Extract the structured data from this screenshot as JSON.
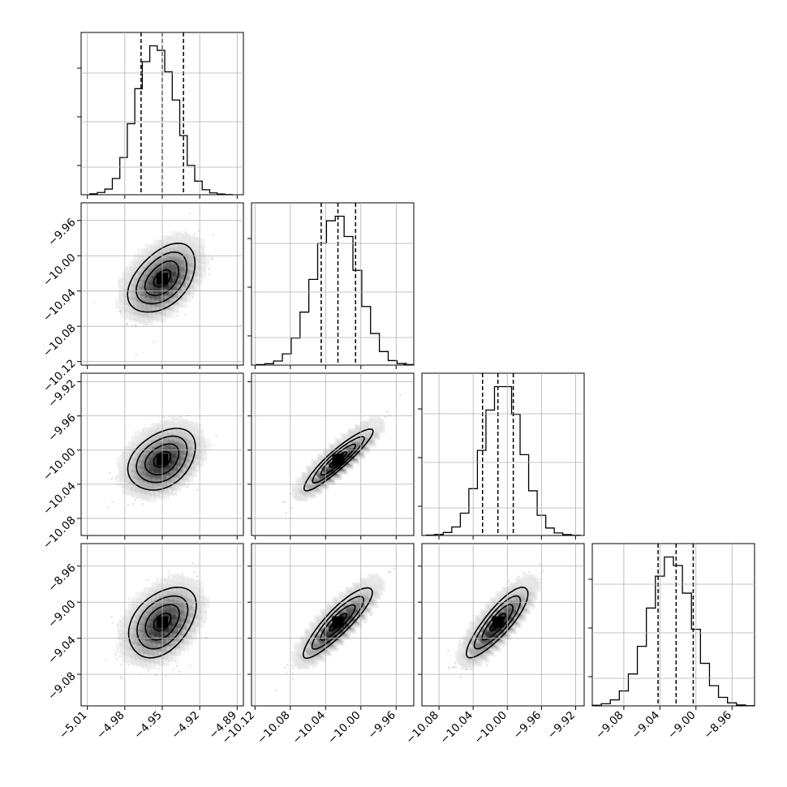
{
  "chart_data": {
    "type": "corner",
    "grid": true,
    "parameters": [
      {
        "range": [
          -5.015,
          -4.885
        ],
        "ticks": [
          -5.01,
          -4.98,
          -4.95,
          -4.92,
          -4.89
        ],
        "tick_labels": [
          "−5.01",
          "−4.98",
          "−4.95",
          "−4.92",
          "−4.89"
        ],
        "quantiles": [
          -4.967,
          -4.95,
          -4.933
        ],
        "mean": -4.95,
        "sd": 0.0135
      },
      {
        "range": [
          -10.124,
          -9.94
        ],
        "ticks": [
          -10.12,
          -10.08,
          -10.04,
          -10.0,
          -9.96
        ],
        "tick_labels": [
          "−10.12",
          "−10.08",
          "−10.04",
          "−10.00",
          "−9.96"
        ],
        "quantiles": [
          -10.045,
          -10.026,
          -10.006
        ],
        "mean": -10.026,
        "sd": 0.0195
      },
      {
        "range": [
          -10.1,
          -9.91
        ],
        "ticks": [
          -10.08,
          -10.04,
          -10.0,
          -9.96,
          -9.92
        ],
        "tick_labels": [
          "−10.08",
          "−10.04",
          "−10.00",
          "−9.96",
          "−9.92"
        ],
        "quantiles": [
          -10.029,
          -10.011,
          -9.993
        ],
        "mean": -10.011,
        "sd": 0.018
      },
      {
        "range": [
          -9.115,
          -8.935
        ],
        "ticks": [
          -9.08,
          -9.04,
          -9.0,
          -8.96
        ],
        "tick_labels": [
          "−9.08",
          "−9.04",
          "−9.00",
          "−8.96"
        ],
        "quantiles": [
          -9.042,
          -9.022,
          -9.003
        ],
        "mean": -9.022,
        "sd": 0.0195
      }
    ],
    "correlations": [
      {
        "pair": [
          0,
          1
        ],
        "r": 0.45
      },
      {
        "pair": [
          0,
          2
        ],
        "r": 0.35
      },
      {
        "pair": [
          1,
          2
        ],
        "r": 0.92
      },
      {
        "pair": [
          0,
          3
        ],
        "r": 0.4
      },
      {
        "pair": [
          1,
          3
        ],
        "r": 0.88
      },
      {
        "pair": [
          2,
          3
        ],
        "r": 0.85
      }
    ],
    "histograms": [
      {
        "x": [
          -5.005,
          -4.999,
          -4.993,
          -4.987,
          -4.981,
          -4.975,
          -4.969,
          -4.963,
          -4.957,
          -4.951,
          -4.945,
          -4.939,
          -4.933,
          -4.927,
          -4.921,
          -4.915,
          -4.909,
          -4.903,
          -4.897
        ],
        "counts": [
          4,
          10,
          25,
          72,
          165,
          315,
          470,
          590,
          660,
          640,
          545,
          420,
          262,
          130,
          60,
          22,
          8,
          3,
          1
        ]
      },
      {
        "x": [
          -10.114,
          -10.104,
          -10.094,
          -10.084,
          -10.074,
          -10.064,
          -10.054,
          -10.044,
          -10.034,
          -10.024,
          -10.014,
          -10.004,
          -9.994,
          -9.984,
          -9.974,
          -9.964,
          -9.954,
          -9.946
        ],
        "counts": [
          2,
          6,
          18,
          50,
          120,
          235,
          380,
          540,
          640,
          660,
          570,
          420,
          260,
          140,
          60,
          20,
          7,
          2
        ]
      },
      {
        "x": [
          -10.09,
          -10.08,
          -10.07,
          -10.06,
          -10.05,
          -10.04,
          -10.03,
          -10.02,
          -10.01,
          -10.0,
          -9.99,
          -9.98,
          -9.97,
          -9.96,
          -9.95,
          -9.94,
          -9.93,
          -9.92
        ],
        "counts": [
          2,
          5,
          14,
          40,
          105,
          220,
          400,
          590,
          700,
          700,
          570,
          380,
          210,
          95,
          35,
          12,
          4,
          1
        ]
      },
      {
        "x": [
          -9.11,
          -9.1,
          -9.09,
          -9.08,
          -9.07,
          -9.06,
          -9.05,
          -9.04,
          -9.03,
          -9.02,
          -9.01,
          -9.0,
          -8.99,
          -8.98,
          -8.97,
          -8.96,
          -8.95,
          -8.94
        ],
        "counts": [
          3,
          10,
          28,
          70,
          150,
          280,
          460,
          610,
          700,
          660,
          530,
          360,
          200,
          95,
          40,
          14,
          4,
          1
        ]
      }
    ]
  }
}
